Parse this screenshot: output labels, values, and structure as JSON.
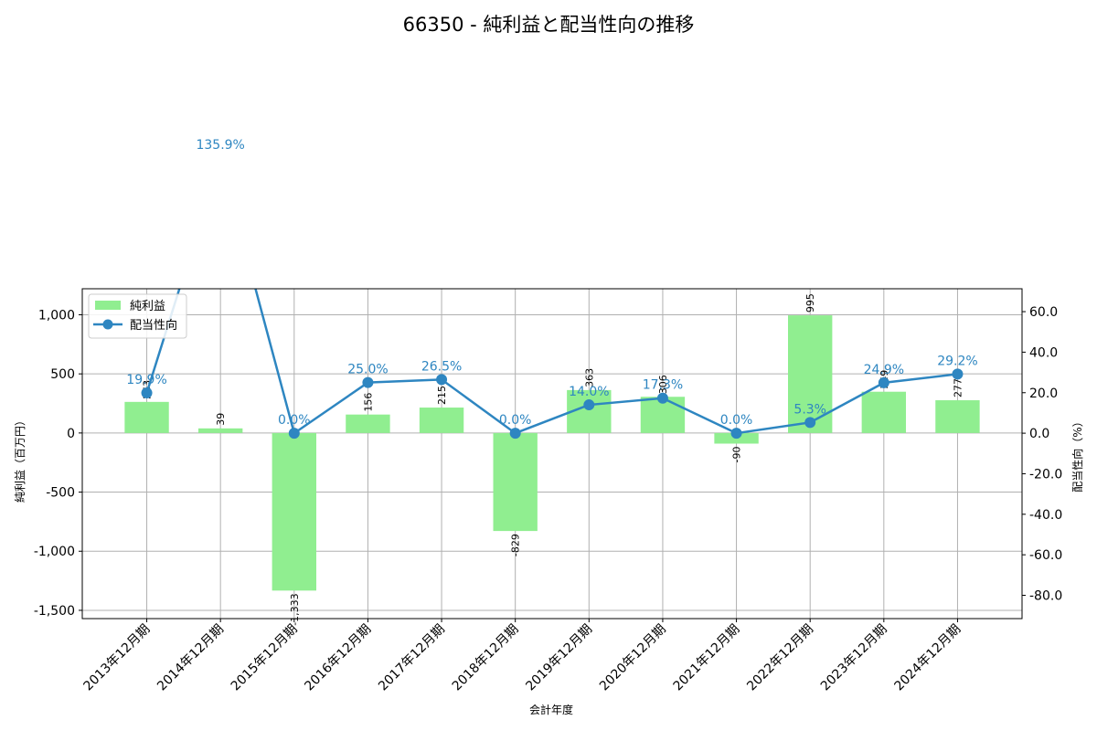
{
  "chart_data": {
    "type": "bar+line",
    "title": "66350 - 純利益と配当性向の推移",
    "xlabel": "会計年度",
    "ylabel_left": "純利益（百万円）",
    "ylabel_right": "配当性向（%）",
    "categories": [
      "2013年12月期",
      "2014年12月期",
      "2015年12月期",
      "2016年12月期",
      "2017年12月期",
      "2018年12月期",
      "2019年12月期",
      "2020年12月期",
      "2021年12月期",
      "2022年12月期",
      "2023年12月期",
      "2024年12月期"
    ],
    "series": [
      {
        "name": "純利益",
        "type": "bar",
        "axis": "left",
        "color": "#90ee90",
        "values": [
          263,
          39,
          -1333,
          156,
          215,
          -829,
          363,
          306,
          -90,
          995,
          349,
          277
        ],
        "labels": [
          "263",
          "39",
          "-1,333",
          "156",
          "215",
          "-829",
          "363",
          "306",
          "-90",
          "995",
          "349",
          "277"
        ]
      },
      {
        "name": "配当性向",
        "type": "line",
        "axis": "right",
        "color": "#2e86c1",
        "values": [
          19.9,
          135.9,
          0.0,
          25.0,
          26.5,
          0.0,
          14.0,
          17.3,
          0.0,
          5.3,
          24.9,
          29.2
        ],
        "labels": [
          "19.9%",
          "135.9%",
          "0.0%",
          "25.0%",
          "26.5%",
          "0.0%",
          "14.0%",
          "17.3%",
          "0.0%",
          "5.3%",
          "24.9%",
          "29.2%"
        ]
      }
    ],
    "ylim_left": [
      -1570,
      1220
    ],
    "ylim_right": [
      -91.5,
      71.3
    ],
    "yticks_left": [
      {
        "v": 1000,
        "t": "1,000"
      },
      {
        "v": 500,
        "t": "500"
      },
      {
        "v": 0,
        "t": "0"
      },
      {
        "v": -500,
        "t": "-500"
      },
      {
        "v": -1000,
        "t": "-1,000"
      },
      {
        "v": -1500,
        "t": "-1,500"
      }
    ],
    "yticks_right": [
      {
        "v": 60,
        "t": "60.0"
      },
      {
        "v": 40,
        "t": "40.0"
      },
      {
        "v": 20,
        "t": "20.0"
      },
      {
        "v": 0,
        "t": "0.0"
      },
      {
        "v": -20,
        "t": "-20.0"
      },
      {
        "v": -40,
        "t": "-40.0"
      },
      {
        "v": -60,
        "t": "-60.0"
      },
      {
        "v": -80,
        "t": "-80.0"
      }
    ],
    "grid": true,
    "legend": {
      "position": "upper left",
      "entries": [
        "純利益",
        "配当性向"
      ]
    }
  }
}
